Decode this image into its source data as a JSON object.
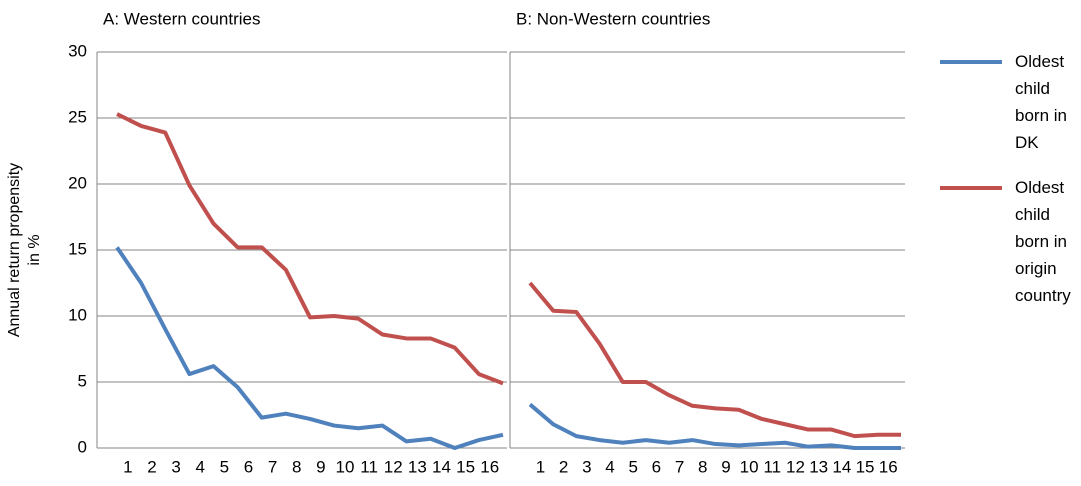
{
  "chart_data": [
    {
      "type": "line",
      "title": "A: Western countries",
      "ylabel": "Annual return propensity in %",
      "categories": [
        null,
        "1",
        "2",
        "3",
        "4",
        "5",
        "6",
        "7",
        "8",
        "9",
        "10",
        "11",
        "12",
        "13",
        "14",
        "15",
        "16"
      ],
      "ylim": [
        0,
        30
      ],
      "yticks": [
        0,
        5,
        10,
        15,
        20,
        25,
        30
      ],
      "grid": true,
      "series": [
        {
          "name": "Oldest child born in DK",
          "color": "#4f81bd",
          "values": [
            15.2,
            12.5,
            9,
            5.6,
            6.2,
            4.6,
            2.3,
            2.6,
            2.2,
            1.7,
            1.5,
            1.7,
            0.5,
            0.7,
            0,
            0.6,
            1.0
          ]
        },
        {
          "name": "Oldest child born in origin country",
          "color": "#c0504d",
          "values": [
            25.3,
            24.4,
            23.9,
            19.9,
            17,
            15.2,
            15.2,
            13.5,
            9.9,
            10,
            9.8,
            8.6,
            8.3,
            8.3,
            7.6,
            5.6,
            4.9
          ]
        }
      ]
    },
    {
      "type": "line",
      "title": "B: Non-Western countries",
      "categories": [
        null,
        "1",
        "2",
        "3",
        "4",
        "5",
        "6",
        "7",
        "8",
        "9",
        "10",
        "11",
        "12",
        "13",
        "14",
        "15",
        "16"
      ],
      "ylim": [
        0,
        30
      ],
      "grid": true,
      "series": [
        {
          "color": "#4f81bd",
          "values": [
            3.3,
            1.8,
            0.9,
            0.6,
            0.4,
            0.6,
            0.4,
            0.6,
            0.3,
            0.2,
            0.3,
            0.4,
            0.1,
            0.2,
            0,
            0,
            0
          ]
        },
        {
          "color": "#c0504d",
          "values": [
            12.5,
            10.4,
            10.3,
            7.9,
            5,
            5,
            4,
            3.2,
            3,
            2.9,
            2.2,
            1.8,
            1.4,
            1.4,
            0.9,
            1,
            1
          ]
        }
      ]
    }
  ]
}
